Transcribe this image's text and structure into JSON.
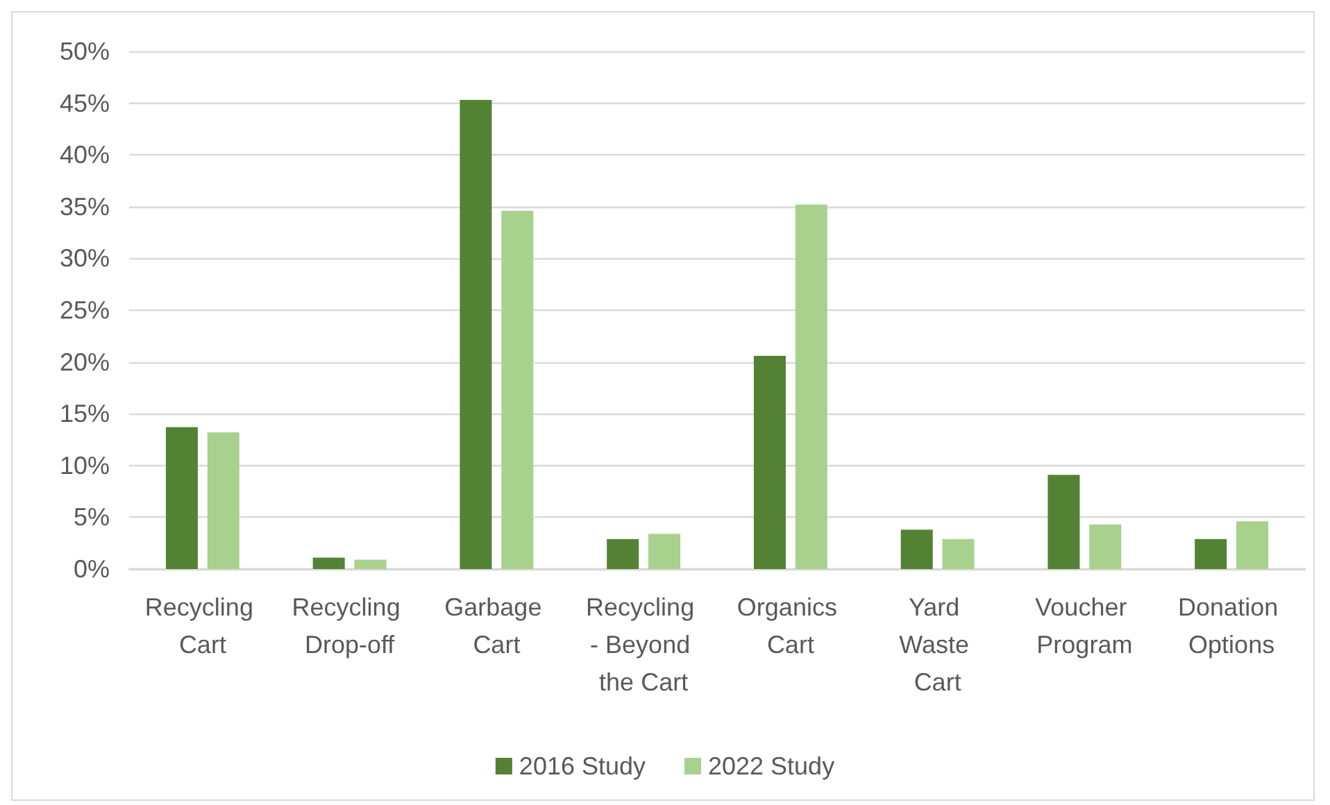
{
  "chart_data": {
    "type": "bar",
    "categories": [
      "Recycling Cart",
      "Recycling Drop-off",
      "Garbage Cart",
      "Recycling - Beyond the Cart",
      "Organics Cart",
      "Yard Waste Cart",
      "Voucher Program",
      "Donation Options"
    ],
    "series": [
      {
        "name": "2016 Study",
        "color": "#548235",
        "values": [
          13.7,
          1.1,
          45.3,
          2.9,
          20.6,
          3.8,
          9.1,
          2.9
        ]
      },
      {
        "name": "2022 Study",
        "color": "#a9d18e",
        "values": [
          13.2,
          0.9,
          34.6,
          3.4,
          35.2,
          2.9,
          4.3,
          4.6
        ]
      }
    ],
    "ylim": [
      0,
      50
    ],
    "yticks": [
      {
        "value": 0,
        "label": "0%"
      },
      {
        "value": 5,
        "label": "5%"
      },
      {
        "value": 10,
        "label": "10%"
      },
      {
        "value": 15,
        "label": "15%"
      },
      {
        "value": 20,
        "label": "20%"
      },
      {
        "value": 25,
        "label": "25%"
      },
      {
        "value": 30,
        "label": "30%"
      },
      {
        "value": 35,
        "label": "35%"
      },
      {
        "value": 40,
        "label": "40%"
      },
      {
        "value": 45,
        "label": "45%"
      },
      {
        "value": 50,
        "label": "50%"
      }
    ],
    "grid": "y",
    "legend": "bottom"
  }
}
